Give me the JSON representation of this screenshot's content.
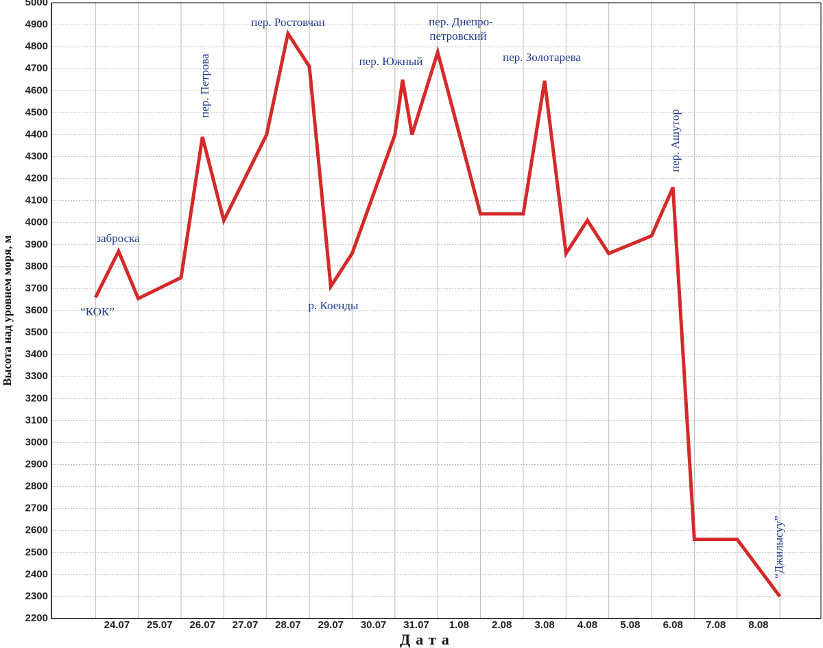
{
  "chart_data": {
    "type": "line",
    "y_label": "Высота над уровнем моря, м",
    "x_label": "Дата",
    "x": [
      0,
      0.54,
      1,
      2,
      2.5,
      3,
      4,
      4.5,
      5,
      5.5,
      6,
      7,
      7.18,
      7.4,
      8,
      9,
      10,
      10.5,
      11,
      11.5,
      12,
      13,
      13.5,
      14,
      15,
      16
    ],
    "series": [
      {
        "name": "Высота",
        "color": "#d42a2a",
        "values": [
          3660,
          3870,
          3655,
          3750,
          4390,
          4010,
          4400,
          4860,
          4710,
          3710,
          3860,
          4400,
          4650,
          4400,
          4775,
          4040,
          4040,
          4645,
          3860,
          4010,
          3860,
          3940,
          4160,
          2560,
          2560,
          2300
        ]
      }
    ],
    "xlim": [
      -1.03,
      16.96
    ],
    "xticks": [
      {
        "value": 0.5,
        "label": "24.07"
      },
      {
        "value": 1.5,
        "label": "25.07"
      },
      {
        "value": 2.5,
        "label": "26.07"
      },
      {
        "value": 3.5,
        "label": "27.07"
      },
      {
        "value": 4.5,
        "label": "28.07"
      },
      {
        "value": 5.5,
        "label": "29.07"
      },
      {
        "value": 6.5,
        "label": "30.07"
      },
      {
        "value": 7.5,
        "label": "31.07"
      },
      {
        "value": 8.5,
        "label": "1.08"
      },
      {
        "value": 9.5,
        "label": "2.08"
      },
      {
        "value": 10.5,
        "label": "3.08"
      },
      {
        "value": 11.5,
        "label": "4.08"
      },
      {
        "value": 12.5,
        "label": "5.08"
      },
      {
        "value": 13.5,
        "label": "6.08"
      },
      {
        "value": 14.5,
        "label": "7.08"
      },
      {
        "value": 15.5,
        "label": "8.08"
      }
    ],
    "ylim": [
      2200,
      5000
    ],
    "yticks": [
      2200,
      2300,
      2400,
      2500,
      2600,
      2700,
      2800,
      2900,
      3000,
      3100,
      3200,
      3300,
      3400,
      3500,
      3600,
      3700,
      3800,
      3900,
      4000,
      4100,
      4200,
      4300,
      4400,
      4500,
      4600,
      4700,
      4800,
      4900,
      5000
    ],
    "grid": true,
    "annotations": [
      "“КОК”",
      "заброска",
      "пер. Петрова",
      "пер. Ростовчан",
      "р. Коенды",
      "пер. Южный",
      "пер. Днепро-",
      "петровский",
      "пер. Золотарева",
      "пер. Ашутор",
      "“Джилысуу”"
    ]
  }
}
